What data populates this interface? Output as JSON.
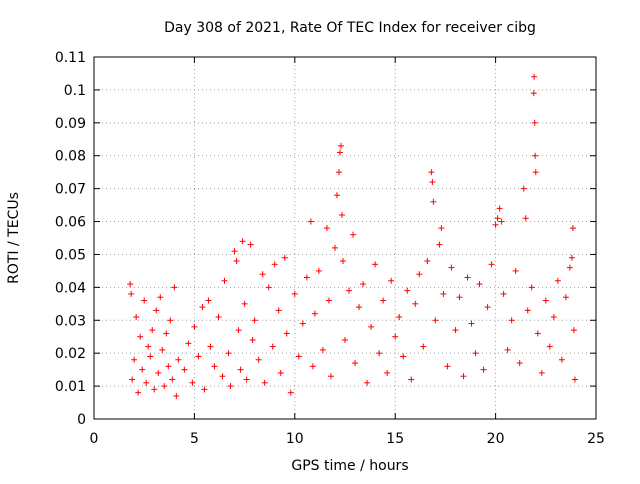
{
  "chart_data": {
    "type": "scatter",
    "title": "Day 308 of 2021, Rate Of TEC Index for receiver cibg",
    "xlabel": "GPS time / hours",
    "ylabel": "ROTI / TECUs",
    "xlim": [
      0,
      25
    ],
    "ylim": [
      0,
      0.11
    ],
    "grid": true,
    "marker": "+",
    "color": "#ff0000",
    "x_ticks": [
      0,
      5,
      10,
      15,
      20,
      25
    ],
    "x_tick_labels": [
      "0",
      "5",
      "10",
      "15",
      "20",
      "25"
    ],
    "y_ticks": [
      0,
      0.01,
      0.02,
      0.03,
      0.04,
      0.05,
      0.06,
      0.07,
      0.08,
      0.09,
      0.1,
      0.11
    ],
    "y_tick_labels": [
      "0",
      "0.01",
      "0.02",
      "0.03",
      "0.04",
      "0.05",
      "0.06",
      "0.07",
      "0.08",
      "0.09",
      "0.1",
      "0.11"
    ],
    "series": [
      {
        "name": "ROTI",
        "points": [
          [
            1.8,
            0.041
          ],
          [
            1.85,
            0.038
          ],
          [
            1.9,
            0.012
          ],
          [
            2.0,
            0.018
          ],
          [
            2.1,
            0.031
          ],
          [
            2.2,
            0.008
          ],
          [
            2.3,
            0.025
          ],
          [
            2.4,
            0.015
          ],
          [
            2.5,
            0.036
          ],
          [
            2.6,
            0.011
          ],
          [
            2.7,
            0.022
          ],
          [
            2.8,
            0.019
          ],
          [
            2.9,
            0.027
          ],
          [
            3.0,
            0.009
          ],
          [
            3.1,
            0.033
          ],
          [
            3.2,
            0.014
          ],
          [
            3.3,
            0.037
          ],
          [
            3.4,
            0.021
          ],
          [
            3.5,
            0.01
          ],
          [
            3.6,
            0.026
          ],
          [
            3.7,
            0.016
          ],
          [
            3.8,
            0.03
          ],
          [
            3.9,
            0.012
          ],
          [
            4.0,
            0.04
          ],
          [
            4.1,
            0.007
          ],
          [
            4.2,
            0.018
          ],
          [
            4.5,
            0.015
          ],
          [
            4.7,
            0.023
          ],
          [
            4.9,
            0.011
          ],
          [
            5.0,
            0.028
          ],
          [
            5.2,
            0.019
          ],
          [
            5.4,
            0.034
          ],
          [
            5.5,
            0.009
          ],
          [
            5.7,
            0.036
          ],
          [
            5.8,
            0.022
          ],
          [
            6.0,
            0.016
          ],
          [
            6.2,
            0.031
          ],
          [
            6.4,
            0.013
          ],
          [
            6.5,
            0.042
          ],
          [
            6.7,
            0.02
          ],
          [
            6.8,
            0.01
          ],
          [
            7.0,
            0.051
          ],
          [
            7.1,
            0.048
          ],
          [
            7.2,
            0.027
          ],
          [
            7.3,
            0.015
          ],
          [
            7.4,
            0.054
          ],
          [
            7.5,
            0.035
          ],
          [
            7.6,
            0.012
          ],
          [
            7.8,
            0.053
          ],
          [
            7.9,
            0.024
          ],
          [
            8.0,
            0.03
          ],
          [
            8.2,
            0.018
          ],
          [
            8.4,
            0.044
          ],
          [
            8.5,
            0.011
          ],
          [
            8.7,
            0.04
          ],
          [
            8.9,
            0.022
          ],
          [
            9.0,
            0.047
          ],
          [
            9.2,
            0.033
          ],
          [
            9.3,
            0.014
          ],
          [
            9.5,
            0.049
          ],
          [
            9.6,
            0.026
          ],
          [
            9.8,
            0.008
          ],
          [
            10.0,
            0.038
          ],
          [
            10.2,
            0.019
          ],
          [
            10.4,
            0.029
          ],
          [
            10.6,
            0.043
          ],
          [
            10.8,
            0.06
          ],
          [
            10.9,
            0.016
          ],
          [
            11.0,
            0.032
          ],
          [
            11.2,
            0.045
          ],
          [
            11.4,
            0.021
          ],
          [
            11.6,
            0.058
          ],
          [
            11.7,
            0.036
          ],
          [
            11.8,
            0.013
          ],
          [
            12.0,
            0.052
          ],
          [
            12.1,
            0.068
          ],
          [
            12.2,
            0.075
          ],
          [
            12.25,
            0.081
          ],
          [
            12.3,
            0.083
          ],
          [
            12.35,
            0.062
          ],
          [
            12.4,
            0.048
          ],
          [
            12.5,
            0.024
          ],
          [
            12.7,
            0.039
          ],
          [
            12.9,
            0.056
          ],
          [
            13.0,
            0.017
          ],
          [
            13.2,
            0.034
          ],
          [
            13.4,
            0.041
          ],
          [
            13.6,
            0.011
          ],
          [
            13.8,
            0.028
          ],
          [
            14.0,
            0.047
          ],
          [
            14.2,
            0.02
          ],
          [
            14.4,
            0.036
          ],
          [
            14.6,
            0.014
          ],
          [
            14.8,
            0.042
          ],
          [
            15.0,
            0.025
          ],
          [
            15.2,
            0.031
          ],
          [
            15.4,
            0.019
          ],
          [
            15.6,
            0.039
          ],
          [
            15.8,
            0.012
          ],
          [
            16.0,
            0.035
          ],
          [
            16.2,
            0.044
          ],
          [
            16.4,
            0.022
          ],
          [
            16.6,
            0.048
          ],
          [
            16.8,
            0.075
          ],
          [
            16.85,
            0.072
          ],
          [
            16.9,
            0.066
          ],
          [
            17.0,
            0.03
          ],
          [
            17.2,
            0.053
          ],
          [
            17.3,
            0.058
          ],
          [
            17.4,
            0.038
          ],
          [
            17.6,
            0.016
          ],
          [
            17.8,
            0.046
          ],
          [
            18.0,
            0.027
          ],
          [
            18.2,
            0.037
          ],
          [
            18.4,
            0.013
          ],
          [
            18.6,
            0.043
          ],
          [
            18.8,
            0.029
          ],
          [
            19.0,
            0.02
          ],
          [
            19.2,
            0.041
          ],
          [
            19.4,
            0.015
          ],
          [
            19.6,
            0.034
          ],
          [
            19.8,
            0.047
          ],
          [
            20.0,
            0.059
          ],
          [
            20.1,
            0.061
          ],
          [
            20.2,
            0.064
          ],
          [
            20.3,
            0.06
          ],
          [
            20.4,
            0.038
          ],
          [
            20.6,
            0.021
          ],
          [
            20.8,
            0.03
          ],
          [
            21.0,
            0.045
          ],
          [
            21.2,
            0.017
          ],
          [
            21.4,
            0.07
          ],
          [
            21.5,
            0.061
          ],
          [
            21.6,
            0.033
          ],
          [
            21.8,
            0.04
          ],
          [
            21.9,
            0.099
          ],
          [
            21.92,
            0.104
          ],
          [
            21.95,
            0.09
          ],
          [
            21.97,
            0.08
          ],
          [
            22.0,
            0.075
          ],
          [
            22.1,
            0.026
          ],
          [
            22.3,
            0.014
          ],
          [
            22.5,
            0.036
          ],
          [
            22.7,
            0.022
          ],
          [
            22.9,
            0.031
          ],
          [
            23.1,
            0.042
          ],
          [
            23.3,
            0.018
          ],
          [
            23.5,
            0.037
          ],
          [
            23.7,
            0.046
          ],
          [
            23.8,
            0.049
          ],
          [
            23.85,
            0.058
          ],
          [
            23.9,
            0.027
          ],
          [
            23.95,
            0.012
          ]
        ]
      }
    ]
  }
}
